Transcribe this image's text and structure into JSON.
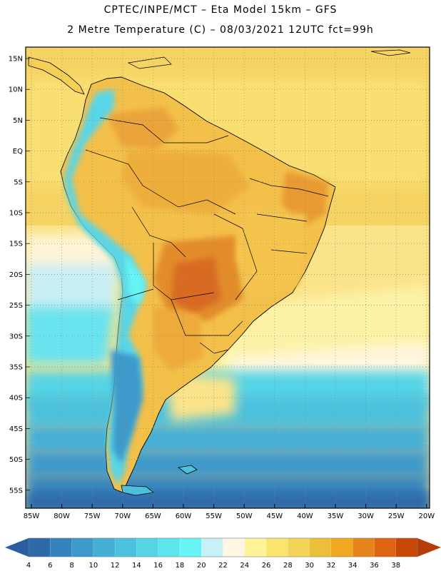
{
  "title": {
    "line1": "CPTEC/INPE/MCT –  Eta Model 15km – GFS",
    "line2": "2 Metre Temperature (C) – 08/03/2021 12UTC fct=99h"
  },
  "axes": {
    "lat_labels": [
      "15N",
      "10N",
      "5N",
      "EQ",
      "5S",
      "10S",
      "15S",
      "20S",
      "25S",
      "30S",
      "35S",
      "40S",
      "45S",
      "50S",
      "55S"
    ],
    "lon_labels": [
      "85W",
      "80W",
      "75W",
      "70W",
      "65W",
      "60W",
      "55W",
      "50W",
      "45W",
      "40W",
      "35W",
      "30W",
      "25W",
      "20W"
    ]
  },
  "colorbar": {
    "labels": [
      "4",
      "6",
      "8",
      "10",
      "12",
      "14",
      "16",
      "18",
      "20",
      "22",
      "24",
      "26",
      "28",
      "30",
      "32",
      "34",
      "36",
      "38"
    ],
    "colors": [
      "#2e6aa8",
      "#3583be",
      "#3d9acb",
      "#45afd6",
      "#4cc1dd",
      "#55d4e6",
      "#5ee4ec",
      "#66f4f4",
      "#c6f2f7",
      "#fff7e4",
      "#fdf49a",
      "#f9e46e",
      "#f3d458",
      "#ecbf3a",
      "#f0a820",
      "#e6851c",
      "#dd6512",
      "#c74806"
    ],
    "left_arrow_color": "#2b5da1",
    "right_arrow_color": "#b63c0a"
  }
}
